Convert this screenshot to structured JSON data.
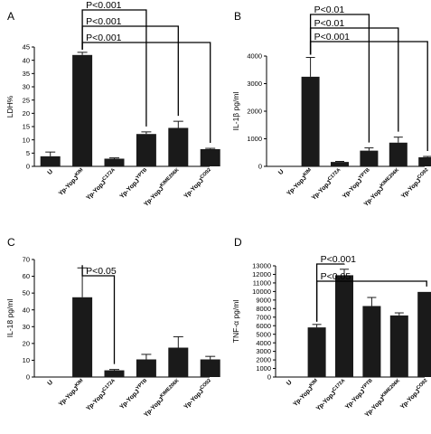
{
  "chart_data": [
    {
      "type": "bar",
      "panel": "A",
      "ylabel": "LDH%",
      "ylim": [
        0,
        45
      ],
      "yticks": [
        0,
        5,
        10,
        15,
        20,
        25,
        30,
        35,
        40,
        45
      ],
      "categories": [
        {
          "base": "U",
          "sup": ""
        },
        {
          "base": "Yp-YopJ",
          "sup": "KIM"
        },
        {
          "base": "Yp-YopJ",
          "sup": "C172A"
        },
        {
          "base": "Yp-YopJ",
          "sup": "YPTB"
        },
        {
          "base": "Yp-YopJ",
          "sup": "KIME206K"
        },
        {
          "base": "Yp-YopJ",
          "sup": "CO92"
        }
      ],
      "values": [
        3.8,
        42,
        2.9,
        12.2,
        14.5,
        6.5
      ],
      "errors": [
        1.6,
        1.0,
        0.3,
        0.8,
        2.5,
        0.3
      ],
      "significance": [
        {
          "label": "P<0.001",
          "from": 1,
          "to": 3
        },
        {
          "label": "P<0.001",
          "from": 1,
          "to": 4
        },
        {
          "label": "P<0.001",
          "from": 1,
          "to": 5
        }
      ]
    },
    {
      "type": "bar",
      "panel": "B",
      "ylabel": "IL-1β pg/ml",
      "ylim": [
        0,
        4000
      ],
      "yticks": [
        0,
        1000,
        2000,
        3000,
        4000
      ],
      "categories": [
        {
          "base": "U",
          "sup": ""
        },
        {
          "base": "Yp-YopJ",
          "sup": "KIM"
        },
        {
          "base": "Yp-YopJ",
          "sup": "C172A"
        },
        {
          "base": "Yp-YopJ",
          "sup": "YPTB"
        },
        {
          "base": "Yp-YopJ",
          "sup": "KIME206K"
        },
        {
          "base": "Yp-YopJ",
          "sup": "CO92"
        }
      ],
      "values": [
        0,
        3250,
        160,
        570,
        860,
        330
      ],
      "errors": [
        0,
        700,
        20,
        100,
        200,
        30
      ],
      "significance": [
        {
          "label": "P<0.01",
          "from": 1,
          "to": 3
        },
        {
          "label": "P<0.01",
          "from": 1,
          "to": 4
        },
        {
          "label": "P<0.001",
          "from": 1,
          "to": 5
        }
      ]
    },
    {
      "type": "bar",
      "panel": "C",
      "ylabel": "IL-18 pg/ml",
      "ylim": [
        0,
        70
      ],
      "yticks": [
        0,
        10,
        20,
        30,
        40,
        50,
        60,
        70
      ],
      "categories": [
        {
          "base": "U",
          "sup": ""
        },
        {
          "base": "Yp-YopJ",
          "sup": "KIM"
        },
        {
          "base": "Yp-YopJ",
          "sup": "C172A"
        },
        {
          "base": "Yp-YopJ",
          "sup": "YPTB"
        },
        {
          "base": "Yp-YopJ",
          "sup": "KIME206K"
        },
        {
          "base": "Yp-YopJ",
          "sup": "CO92"
        }
      ],
      "values": [
        0,
        47.5,
        4,
        10.5,
        17.5,
        10.5
      ],
      "errors": [
        0,
        17.5,
        0.5,
        3,
        6.5,
        1.8
      ],
      "significance": [
        {
          "label": "P<0.05",
          "from": 1,
          "to": 2
        }
      ]
    },
    {
      "type": "bar",
      "panel": "D",
      "ylabel": "TNF-α pg/ml",
      "ylim": [
        0,
        13000
      ],
      "yticks": [
        0,
        1000,
        2000,
        3000,
        4000,
        5000,
        6000,
        7000,
        8000,
        9000,
        10000,
        11000,
        12000,
        13000
      ],
      "categories": [
        {
          "base": "U",
          "sup": ""
        },
        {
          "base": "Yp-YopJ",
          "sup": "KIM"
        },
        {
          "base": "Yp-YopJ",
          "sup": "C172A"
        },
        {
          "base": "Yp-YopJ",
          "sup": "YPTB"
        },
        {
          "base": "Yp-YopJ",
          "sup": "KIME206K"
        },
        {
          "base": "Yp-YopJ",
          "sup": "CO92"
        }
      ],
      "values": [
        0,
        5800,
        11900,
        8300,
        7200,
        9950
      ],
      "errors": [
        0,
        350,
        700,
        1000,
        300,
        0
      ],
      "significance": [
        {
          "label": "P<0.001",
          "from": 1,
          "to": 2
        },
        {
          "label": "P<0.05",
          "from": 1,
          "to": 5
        }
      ]
    }
  ]
}
